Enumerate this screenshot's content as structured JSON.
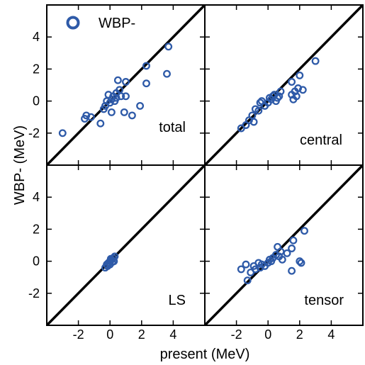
{
  "chart_data": {
    "type": "scatter",
    "xlabel": "present (MeV)",
    "ylabel": "WBP- (MeV)",
    "xlim": [
      -4,
      6
    ],
    "ylim": [
      -4,
      6
    ],
    "x_ticks": [
      -2,
      0,
      2,
      4
    ],
    "y_ticks": [
      -2,
      0,
      2,
      4
    ],
    "legend": {
      "label": "WBP-",
      "placement": "top-left",
      "color": "#2e5aa8"
    },
    "marker_color": "#2e5aa8",
    "line_color": "#000000",
    "reference_line": "y = x",
    "panels": [
      {
        "label": "total",
        "points": [
          [
            -3.0,
            -2.0
          ],
          [
            -1.6,
            -1.1
          ],
          [
            -1.5,
            -0.9
          ],
          [
            -1.2,
            -1.0
          ],
          [
            -0.6,
            -1.4
          ],
          [
            -0.4,
            -0.5
          ],
          [
            -0.3,
            -0.3
          ],
          [
            -0.2,
            0.0
          ],
          [
            -0.1,
            0.4
          ],
          [
            0.0,
            -0.1
          ],
          [
            0.1,
            0.1
          ],
          [
            0.1,
            -0.7
          ],
          [
            0.2,
            0.3
          ],
          [
            0.3,
            0.0
          ],
          [
            0.4,
            0.2
          ],
          [
            0.4,
            0.5
          ],
          [
            0.5,
            1.3
          ],
          [
            0.6,
            0.7
          ],
          [
            0.7,
            0.3
          ],
          [
            0.9,
            -0.7
          ],
          [
            1.0,
            1.2
          ],
          [
            1.0,
            0.3
          ],
          [
            1.4,
            -0.9
          ],
          [
            1.9,
            -0.3
          ],
          [
            2.3,
            2.2
          ],
          [
            2.3,
            1.1
          ],
          [
            3.6,
            1.7
          ],
          [
            3.7,
            3.4
          ]
        ]
      },
      {
        "label": "central",
        "points": [
          [
            -1.7,
            -1.7
          ],
          [
            -1.4,
            -1.5
          ],
          [
            -1.2,
            -1.2
          ],
          [
            -1.0,
            -0.9
          ],
          [
            -0.9,
            -1.3
          ],
          [
            -0.8,
            -0.5
          ],
          [
            -0.6,
            -0.6
          ],
          [
            -0.5,
            -0.1
          ],
          [
            -0.4,
            0.0
          ],
          [
            -0.2,
            -0.3
          ],
          [
            0.0,
            -0.1
          ],
          [
            0.1,
            0.2
          ],
          [
            0.2,
            0.1
          ],
          [
            0.3,
            0.3
          ],
          [
            0.4,
            0.4
          ],
          [
            0.5,
            0.0
          ],
          [
            0.6,
            0.2
          ],
          [
            0.7,
            0.3
          ],
          [
            0.8,
            0.6
          ],
          [
            1.5,
            0.4
          ],
          [
            1.5,
            1.2
          ],
          [
            1.6,
            0.1
          ],
          [
            1.7,
            0.6
          ],
          [
            1.8,
            0.3
          ],
          [
            1.9,
            0.8
          ],
          [
            2.0,
            1.6
          ],
          [
            2.2,
            0.7
          ],
          [
            3.0,
            2.5
          ]
        ]
      },
      {
        "label": "LS",
        "points": [
          [
            -0.3,
            -0.4
          ],
          [
            -0.2,
            -0.2
          ],
          [
            -0.1,
            -0.1
          ],
          [
            0.0,
            0.0
          ],
          [
            0.0,
            -0.2
          ],
          [
            0.1,
            0.1
          ],
          [
            0.2,
            0.2
          ],
          [
            0.25,
            0.0
          ],
          [
            0.3,
            0.3
          ],
          [
            -0.15,
            -0.3
          ],
          [
            0.05,
            0.15
          ],
          [
            0.15,
            -0.05
          ]
        ]
      },
      {
        "label": "tensor",
        "points": [
          [
            -1.7,
            -0.5
          ],
          [
            -1.4,
            -0.2
          ],
          [
            -1.3,
            -1.2
          ],
          [
            -1.1,
            -0.7
          ],
          [
            -0.9,
            -0.3
          ],
          [
            -0.8,
            -0.5
          ],
          [
            -0.6,
            -0.1
          ],
          [
            -0.5,
            -0.4
          ],
          [
            -0.4,
            -0.2
          ],
          [
            -0.2,
            -0.3
          ],
          [
            0.0,
            -0.1
          ],
          [
            0.1,
            0.1
          ],
          [
            0.2,
            0.0
          ],
          [
            0.3,
            0.2
          ],
          [
            0.5,
            0.4
          ],
          [
            0.6,
            0.9
          ],
          [
            0.7,
            0.3
          ],
          [
            0.8,
            0.6
          ],
          [
            0.9,
            0.1
          ],
          [
            1.2,
            0.5
          ],
          [
            1.5,
            0.8
          ],
          [
            1.5,
            -0.6
          ],
          [
            1.6,
            1.3
          ],
          [
            2.0,
            0.0
          ],
          [
            2.1,
            -0.1
          ],
          [
            2.3,
            1.9
          ]
        ]
      }
    ]
  }
}
